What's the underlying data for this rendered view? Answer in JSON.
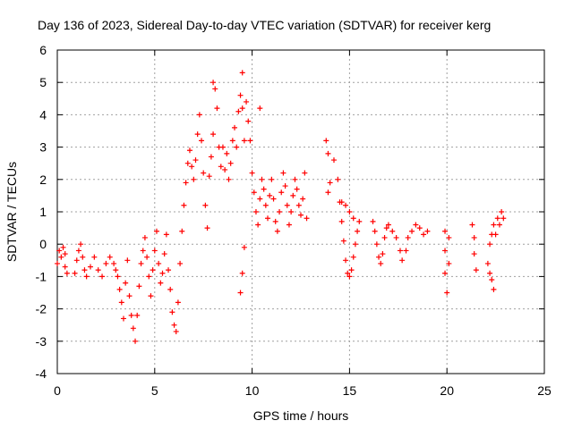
{
  "chart_data": {
    "type": "scatter",
    "title": "Day 136 of 2023, Sidereal Day-to-day VTEC variation (SDTVAR) for receiver kerg",
    "xlabel": "GPS time / hours",
    "ylabel": "SDTVAR / TECUs",
    "xlim": [
      0,
      25
    ],
    "ylim": [
      -4,
      6
    ],
    "xticks": [
      0,
      5,
      10,
      15,
      20,
      25
    ],
    "yticks": [
      -4,
      -3,
      -2,
      -1,
      0,
      1,
      2,
      3,
      4,
      5,
      6
    ],
    "grid": true,
    "marker": "+",
    "color": "#ff0000",
    "series": [
      {
        "name": "SDTVAR",
        "points": [
          [
            0.0,
            -0.6
          ],
          [
            0.1,
            -0.2
          ],
          [
            0.2,
            -0.4
          ],
          [
            0.3,
            -0.1
          ],
          [
            0.4,
            -0.7
          ],
          [
            0.4,
            -0.3
          ],
          [
            0.5,
            -0.9
          ],
          [
            0.9,
            -0.9
          ],
          [
            1.0,
            -0.5
          ],
          [
            1.1,
            -0.2
          ],
          [
            1.2,
            0.0
          ],
          [
            1.3,
            -0.4
          ],
          [
            1.4,
            -0.8
          ],
          [
            1.5,
            -1.0
          ],
          [
            1.7,
            -0.7
          ],
          [
            1.9,
            -0.4
          ],
          [
            2.1,
            -0.8
          ],
          [
            2.3,
            -1.0
          ],
          [
            2.5,
            -0.6
          ],
          [
            2.7,
            -0.4
          ],
          [
            2.9,
            -0.6
          ],
          [
            3.0,
            -0.8
          ],
          [
            3.1,
            -1.0
          ],
          [
            3.2,
            -1.4
          ],
          [
            3.3,
            -1.8
          ],
          [
            3.4,
            -2.3
          ],
          [
            3.5,
            -1.2
          ],
          [
            3.6,
            -0.5
          ],
          [
            3.7,
            -1.6
          ],
          [
            3.8,
            -2.2
          ],
          [
            3.9,
            -2.6
          ],
          [
            4.0,
            -3.0
          ],
          [
            4.1,
            -2.2
          ],
          [
            4.2,
            -1.3
          ],
          [
            4.3,
            -0.6
          ],
          [
            4.4,
            -0.2
          ],
          [
            4.5,
            0.2
          ],
          [
            4.6,
            -0.4
          ],
          [
            4.7,
            -1.0
          ],
          [
            4.8,
            -1.6
          ],
          [
            4.9,
            -0.8
          ],
          [
            5.0,
            -0.2
          ],
          [
            5.1,
            0.4
          ],
          [
            5.2,
            -0.6
          ],
          [
            5.3,
            -1.2
          ],
          [
            5.4,
            -0.9
          ],
          [
            5.5,
            -0.3
          ],
          [
            5.6,
            0.3
          ],
          [
            5.7,
            -0.8
          ],
          [
            5.8,
            -1.4
          ],
          [
            5.9,
            -2.1
          ],
          [
            6.0,
            -2.5
          ],
          [
            6.1,
            -2.7
          ],
          [
            6.2,
            -1.8
          ],
          [
            6.3,
            -0.6
          ],
          [
            6.4,
            0.4
          ],
          [
            6.5,
            1.2
          ],
          [
            6.6,
            1.9
          ],
          [
            6.7,
            2.5
          ],
          [
            6.8,
            2.9
          ],
          [
            6.9,
            2.4
          ],
          [
            7.0,
            2.0
          ],
          [
            7.1,
            2.6
          ],
          [
            7.2,
            3.4
          ],
          [
            7.3,
            4.0
          ],
          [
            7.4,
            3.2
          ],
          [
            7.5,
            2.2
          ],
          [
            7.6,
            1.2
          ],
          [
            7.7,
            0.5
          ],
          [
            7.8,
            2.1
          ],
          [
            7.9,
            2.7
          ],
          [
            8.0,
            3.4
          ],
          [
            8.0,
            5.0
          ],
          [
            8.1,
            4.8
          ],
          [
            8.2,
            4.2
          ],
          [
            8.3,
            3.0
          ],
          [
            8.4,
            2.4
          ],
          [
            8.5,
            3.0
          ],
          [
            8.6,
            2.3
          ],
          [
            8.7,
            2.8
          ],
          [
            8.8,
            2.0
          ],
          [
            8.9,
            2.5
          ],
          [
            9.0,
            3.2
          ],
          [
            9.1,
            3.6
          ],
          [
            9.2,
            3.0
          ],
          [
            9.3,
            4.1
          ],
          [
            9.4,
            4.6
          ],
          [
            9.5,
            4.2
          ],
          [
            9.5,
            5.3
          ],
          [
            9.6,
            3.2
          ],
          [
            9.6,
            -0.1
          ],
          [
            9.5,
            -0.9
          ],
          [
            9.4,
            -1.5
          ],
          [
            9.7,
            4.4
          ],
          [
            9.8,
            3.8
          ],
          [
            9.9,
            3.2
          ],
          [
            10.0,
            2.2
          ],
          [
            10.1,
            1.6
          ],
          [
            10.2,
            1.0
          ],
          [
            10.3,
            0.6
          ],
          [
            10.4,
            1.4
          ],
          [
            10.4,
            4.2
          ],
          [
            10.5,
            2.0
          ],
          [
            10.6,
            1.7
          ],
          [
            10.7,
            1.2
          ],
          [
            10.8,
            0.8
          ],
          [
            10.9,
            1.5
          ],
          [
            11.0,
            2.0
          ],
          [
            11.1,
            1.4
          ],
          [
            11.2,
            0.7
          ],
          [
            11.3,
            0.4
          ],
          [
            11.4,
            1.0
          ],
          [
            11.5,
            1.6
          ],
          [
            11.6,
            2.2
          ],
          [
            11.7,
            1.8
          ],
          [
            11.8,
            1.2
          ],
          [
            11.9,
            0.6
          ],
          [
            12.0,
            1.0
          ],
          [
            12.1,
            1.5
          ],
          [
            12.2,
            2.0
          ],
          [
            12.3,
            1.7
          ],
          [
            12.4,
            1.2
          ],
          [
            12.5,
            0.9
          ],
          [
            12.6,
            1.4
          ],
          [
            12.7,
            2.2
          ],
          [
            12.8,
            0.8
          ],
          [
            13.8,
            3.2
          ],
          [
            13.9,
            2.8
          ],
          [
            13.9,
            1.6
          ],
          [
            14.0,
            1.9
          ],
          [
            14.2,
            2.6
          ],
          [
            14.4,
            2.0
          ],
          [
            14.5,
            1.3
          ],
          [
            14.6,
            0.7
          ],
          [
            14.7,
            0.1
          ],
          [
            14.8,
            -0.5
          ],
          [
            14.9,
            -0.9
          ],
          [
            15.0,
            -1.0
          ],
          [
            15.1,
            -0.8
          ],
          [
            15.2,
            -0.4
          ],
          [
            15.3,
            0.0
          ],
          [
            15.4,
            0.4
          ],
          [
            15.5,
            0.7
          ],
          [
            15.2,
            0.8
          ],
          [
            15.0,
            1.0
          ],
          [
            14.8,
            1.2
          ],
          [
            14.6,
            1.3
          ],
          [
            16.2,
            0.7
          ],
          [
            16.3,
            0.4
          ],
          [
            16.4,
            0.0
          ],
          [
            16.5,
            -0.4
          ],
          [
            16.6,
            -0.6
          ],
          [
            16.7,
            -0.3
          ],
          [
            16.8,
            0.2
          ],
          [
            16.9,
            0.5
          ],
          [
            17.0,
            0.6
          ],
          [
            17.2,
            0.4
          ],
          [
            17.4,
            0.2
          ],
          [
            17.6,
            -0.2
          ],
          [
            17.7,
            -0.5
          ],
          [
            17.9,
            -0.2
          ],
          [
            18.0,
            0.2
          ],
          [
            18.2,
            0.4
          ],
          [
            18.4,
            0.6
          ],
          [
            18.6,
            0.5
          ],
          [
            18.8,
            0.3
          ],
          [
            19.0,
            0.4
          ],
          [
            19.9,
            0.4
          ],
          [
            19.9,
            -0.2
          ],
          [
            19.9,
            -0.9
          ],
          [
            20.0,
            -1.5
          ],
          [
            20.1,
            -0.6
          ],
          [
            20.1,
            0.2
          ],
          [
            21.3,
            0.6
          ],
          [
            21.4,
            0.2
          ],
          [
            21.4,
            -0.3
          ],
          [
            21.5,
            -0.8
          ],
          [
            22.1,
            -0.6
          ],
          [
            22.2,
            -0.9
          ],
          [
            22.3,
            -1.1
          ],
          [
            22.4,
            -1.4
          ],
          [
            22.2,
            0.0
          ],
          [
            22.3,
            0.3
          ],
          [
            22.4,
            0.6
          ],
          [
            22.5,
            0.3
          ],
          [
            22.6,
            0.8
          ],
          [
            22.7,
            0.6
          ],
          [
            22.8,
            1.0
          ],
          [
            22.9,
            0.8
          ]
        ]
      }
    ]
  }
}
